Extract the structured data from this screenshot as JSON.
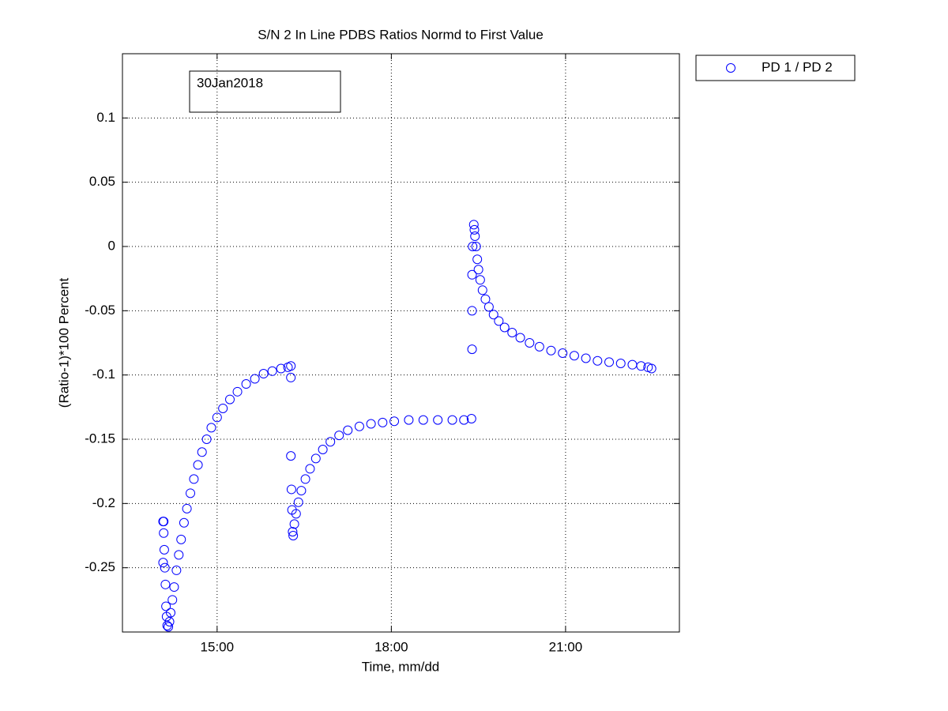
{
  "chart_data": {
    "type": "scatter",
    "title": "S/N 2 In Line PDBS Ratios Normd to First Value",
    "x_label": "Time, mm/dd",
    "y_label": "(Ratio-1)*100 Percent",
    "annotation": "30Jan2018",
    "legend_position": "outside-right",
    "grid": true,
    "xlim": [
      13.37,
      22.96
    ],
    "ylim": [
      -0.3,
      0.15
    ],
    "xticks": [
      {
        "value": 15,
        "label": "15:00"
      },
      {
        "value": 18,
        "label": "18:00"
      },
      {
        "value": 21,
        "label": "21:00"
      }
    ],
    "yticks": [
      -0.25,
      -0.2,
      -0.15,
      -0.1,
      -0.05,
      0,
      0.05,
      0.1
    ],
    "x": [
      14.07,
      14.08,
      14.07,
      14.09,
      14.08,
      14.1,
      14.11,
      14.12,
      14.13,
      14.14,
      14.16,
      14.18,
      14.2,
      14.23,
      14.26,
      14.3,
      14.34,
      14.38,
      14.43,
      14.48,
      14.54,
      14.6,
      14.67,
      14.74,
      14.82,
      14.9,
      15.0,
      15.1,
      15.22,
      15.35,
      15.5,
      15.65,
      15.8,
      15.95,
      16.1,
      16.22,
      16.27,
      16.27,
      16.27,
      16.28,
      16.29,
      16.3,
      16.31,
      16.33,
      16.36,
      16.4,
      16.45,
      16.52,
      16.6,
      16.7,
      16.82,
      16.95,
      17.1,
      17.25,
      17.45,
      17.65,
      17.85,
      18.05,
      18.3,
      18.55,
      18.8,
      19.05,
      19.25,
      19.38,
      19.39,
      19.39,
      19.39,
      19.4,
      19.42,
      19.43,
      19.44,
      19.46,
      19.48,
      19.5,
      19.53,
      19.57,
      19.62,
      19.68,
      19.76,
      19.85,
      19.95,
      20.08,
      20.22,
      20.38,
      20.55,
      20.75,
      20.95,
      21.15,
      21.35,
      21.55,
      21.75,
      21.95,
      22.15,
      22.3,
      22.42,
      22.48
    ],
    "series": [
      {
        "name": "PD 1 / PD 2",
        "color": "#0000ff",
        "values": [
          -0.214,
          -0.214,
          -0.246,
          -0.236,
          -0.223,
          -0.25,
          -0.263,
          -0.28,
          -0.288,
          -0.295,
          -0.296,
          -0.292,
          -0.285,
          -0.275,
          -0.265,
          -0.252,
          -0.24,
          -0.228,
          -0.215,
          -0.204,
          -0.192,
          -0.181,
          -0.17,
          -0.16,
          -0.15,
          -0.141,
          -0.133,
          -0.126,
          -0.119,
          -0.113,
          -0.107,
          -0.103,
          -0.099,
          -0.097,
          -0.095,
          -0.094,
          -0.093,
          -0.102,
          -0.163,
          -0.189,
          -0.205,
          -0.222,
          -0.225,
          -0.216,
          -0.208,
          -0.199,
          -0.19,
          -0.181,
          -0.173,
          -0.165,
          -0.158,
          -0.152,
          -0.147,
          -0.143,
          -0.14,
          -0.138,
          -0.137,
          -0.136,
          -0.135,
          -0.135,
          -0.135,
          -0.135,
          -0.135,
          -0.134,
          -0.08,
          -0.05,
          -0.022,
          0.0,
          0.017,
          0.013,
          0.008,
          0.0,
          -0.01,
          -0.018,
          -0.026,
          -0.034,
          -0.041,
          -0.047,
          -0.053,
          -0.058,
          -0.063,
          -0.067,
          -0.071,
          -0.075,
          -0.078,
          -0.081,
          -0.083,
          -0.085,
          -0.087,
          -0.089,
          -0.09,
          -0.091,
          -0.092,
          -0.093,
          -0.094,
          -0.095
        ]
      }
    ]
  }
}
